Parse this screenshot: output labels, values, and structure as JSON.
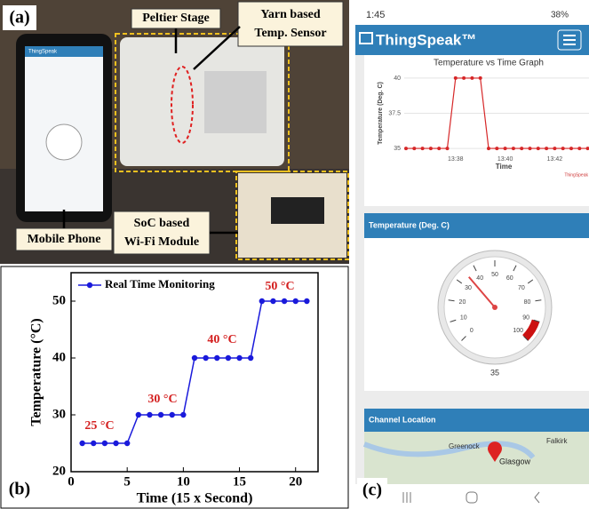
{
  "panel_a": {
    "label": "(a)",
    "callouts": [
      "Peltier Stage",
      "Yarn based",
      "Temp. Sensor",
      "Mobile Phone",
      "SoC based",
      "Wi-Fi Module"
    ],
    "phone_app": "ThingSpeak"
  },
  "panel_c": {
    "label": "(c)",
    "status_time": "1:45",
    "battery": "38%",
    "app_title": "ThingSpeak™",
    "map_title": "Channel Location",
    "map_places": [
      "Greenock",
      "Falkirk",
      "Glasgow"
    ]
  },
  "chart_data": [
    {
      "type": "line",
      "panel_label": "(b)",
      "xlabel": "Time (15 x Second)",
      "ylabel": "Temperature (°C)",
      "x": [
        1,
        2,
        3,
        4,
        5,
        6,
        7,
        8,
        9,
        10,
        11,
        12,
        13,
        14,
        15,
        16,
        17,
        18,
        19,
        20,
        21
      ],
      "series": [
        {
          "name": "Real Time Monitoring",
          "color": "#1a1adb",
          "values": [
            25,
            25,
            25,
            25,
            25,
            30,
            30,
            30,
            30,
            30,
            40,
            40,
            40,
            40,
            40,
            40,
            50,
            50,
            50,
            50,
            50
          ]
        }
      ],
      "xlim": [
        0,
        22
      ],
      "ylim": [
        20,
        55
      ],
      "xticks": [
        0,
        5,
        10,
        15,
        20
      ],
      "yticks": [
        20,
        30,
        40,
        50
      ],
      "annotations": [
        "25 °C",
        "30 °C",
        "40 °C",
        "50 °C"
      ],
      "annotation_color": "#d42020",
      "legend": "upper left"
    },
    {
      "type": "line",
      "title": "Temperature vs Time Graph",
      "ylabel": "Temperature (Deg. C)",
      "xlabel": "Time",
      "categories": [
        null,
        null,
        null,
        null,
        null,
        null,
        "13:38",
        null,
        null,
        null,
        null,
        null,
        "13:40",
        null,
        null,
        null,
        null,
        null,
        "13:42",
        null,
        null,
        null,
        null
      ],
      "values": [
        35,
        35,
        35,
        35,
        35,
        35,
        40,
        40,
        40,
        40,
        35,
        35,
        35,
        35,
        35,
        35,
        35,
        35,
        35,
        35,
        35,
        35,
        35
      ],
      "color": "#d62728",
      "ylim": [
        34.5,
        40.5
      ],
      "yticks": [
        35,
        37.5,
        40
      ],
      "grid": true,
      "credit": "ThingSpeak"
    },
    {
      "type": "gauge",
      "title": "Temperature (Deg. C)",
      "value": 35,
      "range": [
        0,
        100
      ],
      "ticks": [
        0,
        10,
        20,
        30,
        40,
        50,
        60,
        70,
        80,
        90,
        100
      ],
      "band": [
        90,
        100
      ],
      "band_color": "#cc1111",
      "needle_color": "#d44"
    }
  ]
}
